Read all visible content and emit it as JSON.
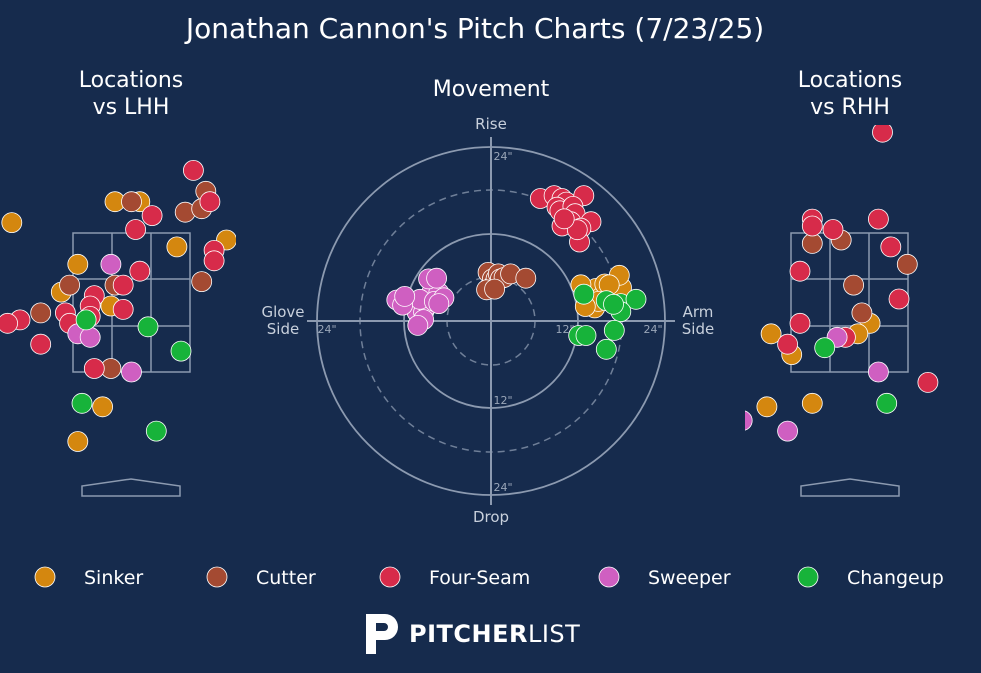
{
  "title": "Jonathan Cannon's Pitch Charts (7/23/25)",
  "panels": {
    "lhh_title_line1": "Locations",
    "lhh_title_line2": "vs LHH",
    "rhh_title_line1": "Locations",
    "rhh_title_line2": "vs RHH",
    "movement_title": "Movement"
  },
  "movement_labels": {
    "rise": "Rise",
    "drop": "Drop",
    "glove_line1": "Glove",
    "glove_line2": "Side",
    "arm_line1": "Arm",
    "arm_line2": "Side",
    "tick_24_top": "24\"",
    "tick_12_bottom": "12\"",
    "tick_24_bottom": "24\"",
    "tick_24_left": "24\"",
    "tick_12_right": "12\"",
    "tick_24_right": "24\""
  },
  "legend": [
    {
      "name": "Sinker",
      "color": "#d4870f"
    },
    {
      "name": "Cutter",
      "color": "#a44a32"
    },
    {
      "name": "Four-Seam",
      "color": "#d72b4a"
    },
    {
      "name": "Sweeper",
      "color": "#cf5fc1"
    },
    {
      "name": "Changeup",
      "color": "#17b33a"
    }
  ],
  "brand": {
    "bold": "PITCHER",
    "light": "LIST"
  },
  "chart_data": [
    {
      "type": "scatter",
      "panel": "Locations vs LHH",
      "points": [
        {
          "pitch": "Sinker",
          "x": -1.45,
          "y": 3.65
        },
        {
          "pitch": "Sinker",
          "x": -0.2,
          "y": 3.95
        },
        {
          "pitch": "Sinker",
          "x": 0.1,
          "y": 3.95
        },
        {
          "pitch": "Sinker",
          "x": 1.15,
          "y": 3.4
        },
        {
          "pitch": "Sinker",
          "x": 0.55,
          "y": 3.3
        },
        {
          "pitch": "Sinker",
          "x": -0.65,
          "y": 3.05
        },
        {
          "pitch": "Sinker",
          "x": -0.85,
          "y": 2.65
        },
        {
          "pitch": "Sinker",
          "x": -0.25,
          "y": 2.45
        },
        {
          "pitch": "Sinker",
          "x": -0.65,
          "y": 0.5
        },
        {
          "pitch": "Sinker",
          "x": -0.35,
          "y": 1.0
        },
        {
          "pitch": "Cutter",
          "x": 0.0,
          "y": 3.95
        },
        {
          "pitch": "Cutter",
          "x": 0.65,
          "y": 3.8
        },
        {
          "pitch": "Cutter",
          "x": 0.9,
          "y": 4.1
        },
        {
          "pitch": "Cutter",
          "x": 0.85,
          "y": 3.85
        },
        {
          "pitch": "Cutter",
          "x": 0.85,
          "y": 2.8
        },
        {
          "pitch": "Cutter",
          "x": -0.2,
          "y": 2.75
        },
        {
          "pitch": "Cutter",
          "x": -0.75,
          "y": 2.75
        },
        {
          "pitch": "Cutter",
          "x": -1.1,
          "y": 2.35
        },
        {
          "pitch": "Cutter",
          "x": -0.25,
          "y": 1.55
        },
        {
          "pitch": "Four-Seam",
          "x": 0.75,
          "y": 4.4
        },
        {
          "pitch": "Four-Seam",
          "x": 0.95,
          "y": 3.95
        },
        {
          "pitch": "Four-Seam",
          "x": 0.25,
          "y": 3.75
        },
        {
          "pitch": "Four-Seam",
          "x": 0.05,
          "y": 3.55
        },
        {
          "pitch": "Four-Seam",
          "x": 0.1,
          "y": 2.95
        },
        {
          "pitch": "Four-Seam",
          "x": -0.1,
          "y": 2.75
        },
        {
          "pitch": "Four-Seam",
          "x": -0.45,
          "y": 2.6
        },
        {
          "pitch": "Four-Seam",
          "x": -0.5,
          "y": 2.45
        },
        {
          "pitch": "Four-Seam",
          "x": -0.8,
          "y": 2.35
        },
        {
          "pitch": "Four-Seam",
          "x": -1.35,
          "y": 2.25
        },
        {
          "pitch": "Four-Seam",
          "x": -1.5,
          "y": 2.2
        },
        {
          "pitch": "Four-Seam",
          "x": -0.75,
          "y": 2.2
        },
        {
          "pitch": "Four-Seam",
          "x": -0.5,
          "y": 2.3
        },
        {
          "pitch": "Four-Seam",
          "x": -0.1,
          "y": 2.4
        },
        {
          "pitch": "Four-Seam",
          "x": -1.1,
          "y": 1.9
        },
        {
          "pitch": "Four-Seam",
          "x": -0.45,
          "y": 1.55
        },
        {
          "pitch": "Four-Seam",
          "x": 1.0,
          "y": 3.25
        },
        {
          "pitch": "Four-Seam",
          "x": 1.0,
          "y": 3.1
        },
        {
          "pitch": "Sweeper",
          "x": -0.25,
          "y": 3.05
        },
        {
          "pitch": "Sweeper",
          "x": -0.65,
          "y": 2.05
        },
        {
          "pitch": "Sweeper",
          "x": -0.5,
          "y": 2.0
        },
        {
          "pitch": "Sweeper",
          "x": 0.0,
          "y": 1.5
        },
        {
          "pitch": "Changeup",
          "x": -0.55,
          "y": 2.25
        },
        {
          "pitch": "Changeup",
          "x": 0.2,
          "y": 2.15
        },
        {
          "pitch": "Changeup",
          "x": 0.6,
          "y": 1.8
        },
        {
          "pitch": "Changeup",
          "x": -0.6,
          "y": 1.05
        },
        {
          "pitch": "Changeup",
          "x": 0.3,
          "y": 0.65
        }
      ]
    },
    {
      "type": "scatter",
      "panel": "Movement",
      "xlabel_left": "Glove Side",
      "xlabel_right": "Arm Side",
      "ylabel_top": "Rise",
      "ylabel_bottom": "Drop",
      "unit": "inches",
      "rings": [
        12,
        24
      ],
      "points": [
        {
          "pitch": "Sinker",
          "x": 14.5,
          "y": 4.5
        },
        {
          "pitch": "Sinker",
          "x": 15.2,
          "y": 3.3
        },
        {
          "pitch": "Sinker",
          "x": 16.0,
          "y": 3.0
        },
        {
          "pitch": "Sinker",
          "x": 17.0,
          "y": 3.8
        },
        {
          "pitch": "Sinker",
          "x": 15.7,
          "y": 5.1
        },
        {
          "pitch": "Sinker",
          "x": 16.8,
          "y": 2.6
        },
        {
          "pitch": "Sinker",
          "x": 17.2,
          "y": 2.6
        },
        {
          "pitch": "Sinker",
          "x": 18.0,
          "y": 2.6
        },
        {
          "pitch": "Sinker",
          "x": 18.0,
          "y": 4.6
        },
        {
          "pitch": "Sinker",
          "x": 14.3,
          "y": 1.8
        },
        {
          "pitch": "Sinker",
          "x": 14.8,
          "y": 2.7
        },
        {
          "pitch": "Sinker",
          "x": 17.7,
          "y": 6.3
        },
        {
          "pitch": "Sinker",
          "x": 16.3,
          "y": 5.0
        },
        {
          "pitch": "Sinker",
          "x": 12.4,
          "y": 5.0
        },
        {
          "pitch": "Sinker",
          "x": 13.0,
          "y": 2.0
        },
        {
          "pitch": "Cutter",
          "x": -0.4,
          "y": 6.7
        },
        {
          "pitch": "Cutter",
          "x": 0.2,
          "y": 5.8
        },
        {
          "pitch": "Cutter",
          "x": 0.3,
          "y": 4.9
        },
        {
          "pitch": "Cutter",
          "x": 0.7,
          "y": 5.8
        },
        {
          "pitch": "Cutter",
          "x": 1.0,
          "y": 6.5
        },
        {
          "pitch": "Cutter",
          "x": 1.3,
          "y": 5.8
        },
        {
          "pitch": "Cutter",
          "x": 1.8,
          "y": 6.0
        },
        {
          "pitch": "Cutter",
          "x": 2.7,
          "y": 6.5
        },
        {
          "pitch": "Cutter",
          "x": 4.8,
          "y": 5.9
        },
        {
          "pitch": "Cutter",
          "x": -0.6,
          "y": 4.3
        },
        {
          "pitch": "Cutter",
          "x": 0.5,
          "y": 4.4
        },
        {
          "pitch": "Four-Seam",
          "x": 6.8,
          "y": 16.9
        },
        {
          "pitch": "Four-Seam",
          "x": 8.7,
          "y": 17.3
        },
        {
          "pitch": "Four-Seam",
          "x": 9.8,
          "y": 16.9
        },
        {
          "pitch": "Four-Seam",
          "x": 10.4,
          "y": 16.4
        },
        {
          "pitch": "Four-Seam",
          "x": 12.8,
          "y": 17.3
        },
        {
          "pitch": "Four-Seam",
          "x": 9.1,
          "y": 15.7
        },
        {
          "pitch": "Four-Seam",
          "x": 9.5,
          "y": 15.2
        },
        {
          "pitch": "Four-Seam",
          "x": 11.3,
          "y": 15.8
        },
        {
          "pitch": "Four-Seam",
          "x": 11.6,
          "y": 14.8
        },
        {
          "pitch": "Four-Seam",
          "x": 11.0,
          "y": 13.7
        },
        {
          "pitch": "Four-Seam",
          "x": 13.8,
          "y": 13.7
        },
        {
          "pitch": "Four-Seam",
          "x": 9.8,
          "y": 13.1
        },
        {
          "pitch": "Four-Seam",
          "x": 12.4,
          "y": 12.8
        },
        {
          "pitch": "Four-Seam",
          "x": 12.2,
          "y": 10.9
        },
        {
          "pitch": "Four-Seam",
          "x": 11.9,
          "y": 12.6
        },
        {
          "pitch": "Four-Seam",
          "x": 10.1,
          "y": 14.1
        },
        {
          "pitch": "Sweeper",
          "x": -13.0,
          "y": 2.9
        },
        {
          "pitch": "Sweeper",
          "x": -11.5,
          "y": 2.5
        },
        {
          "pitch": "Sweeper",
          "x": -10.2,
          "y": 1.2
        },
        {
          "pitch": "Sweeper",
          "x": -9.3,
          "y": 1.2
        },
        {
          "pitch": "Sweeper",
          "x": -8.7,
          "y": 2.2
        },
        {
          "pitch": "Sweeper",
          "x": -8.2,
          "y": 3.9
        },
        {
          "pitch": "Sweeper",
          "x": -9.8,
          "y": 3.0
        },
        {
          "pitch": "Sweeper",
          "x": -7.2,
          "y": 3.9
        },
        {
          "pitch": "Sweeper",
          "x": -7.8,
          "y": 2.7
        },
        {
          "pitch": "Sweeper",
          "x": -8.6,
          "y": 5.8
        },
        {
          "pitch": "Sweeper",
          "x": -7.5,
          "y": 5.9
        },
        {
          "pitch": "Sweeper",
          "x": -6.5,
          "y": 3.2
        },
        {
          "pitch": "Sweeper",
          "x": -7.2,
          "y": 2.4
        },
        {
          "pitch": "Sweeper",
          "x": -12.2,
          "y": 2.2
        },
        {
          "pitch": "Sweeper",
          "x": -11.9,
          "y": 3.4
        },
        {
          "pitch": "Sweeper",
          "x": -9.3,
          "y": 0.2
        },
        {
          "pitch": "Sweeper",
          "x": -10.1,
          "y": -0.6
        },
        {
          "pitch": "Changeup",
          "x": 12.8,
          "y": 3.7
        },
        {
          "pitch": "Changeup",
          "x": 15.9,
          "y": 2.8
        },
        {
          "pitch": "Changeup",
          "x": 17.9,
          "y": 2.4
        },
        {
          "pitch": "Changeup",
          "x": 20.0,
          "y": 3.0
        },
        {
          "pitch": "Changeup",
          "x": 17.9,
          "y": 1.3
        },
        {
          "pitch": "Changeup",
          "x": 17.0,
          "y": -1.3
        },
        {
          "pitch": "Changeup",
          "x": 12.1,
          "y": -2.0
        },
        {
          "pitch": "Changeup",
          "x": 13.1,
          "y": -2.0
        },
        {
          "pitch": "Changeup",
          "x": 15.9,
          "y": -3.9
        },
        {
          "pitch": "Changeup",
          "x": 16.9,
          "y": 2.3
        }
      ]
    },
    {
      "type": "scatter",
      "panel": "Locations vs RHH",
      "points": [
        {
          "pitch": "Sinker",
          "x": -0.95,
          "y": 2.05
        },
        {
          "pitch": "Sinker",
          "x": -0.7,
          "y": 1.75
        },
        {
          "pitch": "Sinker",
          "x": -1.0,
          "y": 1.0
        },
        {
          "pitch": "Sinker",
          "x": -0.45,
          "y": 1.05
        },
        {
          "pitch": "Sinker",
          "x": 0.25,
          "y": 2.2
        },
        {
          "pitch": "Sinker",
          "x": 0.1,
          "y": 2.05
        },
        {
          "pitch": "Cutter",
          "x": -0.45,
          "y": 3.35
        },
        {
          "pitch": "Cutter",
          "x": -0.1,
          "y": 3.4
        },
        {
          "pitch": "Cutter",
          "x": 0.05,
          "y": 2.75
        },
        {
          "pitch": "Cutter",
          "x": 0.15,
          "y": 2.35
        },
        {
          "pitch": "Cutter",
          "x": 0.7,
          "y": 3.05
        },
        {
          "pitch": "Four-Seam",
          "x": 0.4,
          "y": 4.95
        },
        {
          "pitch": "Four-Seam",
          "x": -0.45,
          "y": 3.7
        },
        {
          "pitch": "Four-Seam",
          "x": -0.45,
          "y": 3.6
        },
        {
          "pitch": "Four-Seam",
          "x": -0.2,
          "y": 3.55
        },
        {
          "pitch": "Four-Seam",
          "x": 0.35,
          "y": 3.7
        },
        {
          "pitch": "Four-Seam",
          "x": 0.5,
          "y": 3.3
        },
        {
          "pitch": "Four-Seam",
          "x": -0.6,
          "y": 2.95
        },
        {
          "pitch": "Four-Seam",
          "x": -0.6,
          "y": 2.2
        },
        {
          "pitch": "Four-Seam",
          "x": -0.75,
          "y": 1.9
        },
        {
          "pitch": "Four-Seam",
          "x": -0.05,
          "y": 2.0
        },
        {
          "pitch": "Four-Seam",
          "x": 0.6,
          "y": 2.55
        },
        {
          "pitch": "Four-Seam",
          "x": 0.95,
          "y": 1.35
        },
        {
          "pitch": "Sweeper",
          "x": -0.15,
          "y": 2.0
        },
        {
          "pitch": "Sweeper",
          "x": 0.35,
          "y": 1.5
        },
        {
          "pitch": "Sweeper",
          "x": -1.3,
          "y": 0.8
        },
        {
          "pitch": "Sweeper",
          "x": -0.75,
          "y": 0.65
        },
        {
          "pitch": "Sweeper",
          "x": -1.75,
          "y": -0.25
        },
        {
          "pitch": "Sweeper",
          "x": -1.45,
          "y": -0.25
        },
        {
          "pitch": "Changeup",
          "x": -0.3,
          "y": 1.85
        },
        {
          "pitch": "Changeup",
          "x": 0.45,
          "y": 1.05
        }
      ]
    }
  ]
}
